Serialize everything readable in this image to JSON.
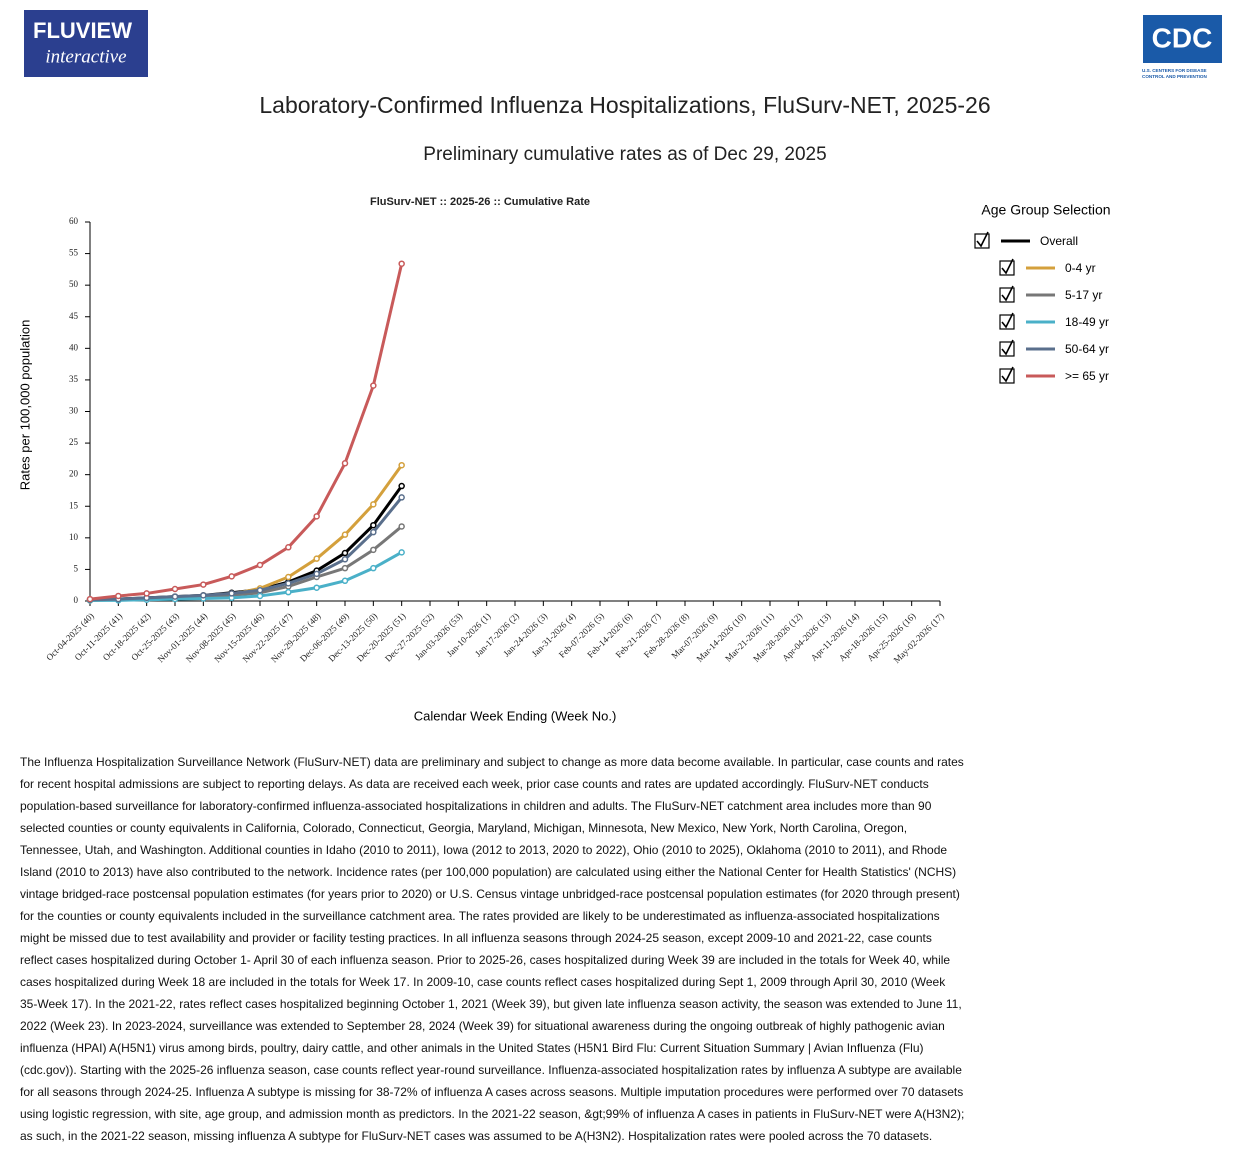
{
  "header": {
    "logo_bold": "FLU",
    "logo_light": "VIEW",
    "logo_sub": "interactive",
    "cdc": "CDC",
    "cdc_sub_1": "U.S. CENTERS FOR DISEASE",
    "cdc_sub_2": "CONTROL AND PREVENTION",
    "title": "Laboratory-Confirmed Influenza Hospitalizations, FluSurv-NET, 2025-26",
    "subtitle": "Preliminary cumulative rates as of Dec 29, 2025"
  },
  "legend_title": "Age Group Selection",
  "chart_data": {
    "type": "line",
    "title": "FluSurv-NET :: 2025-26 :: Cumulative Rate",
    "x_label": "Calendar Week Ending (Week No.)",
    "y_label": "Rates per 100,000 population",
    "categories": [
      "Oct-04-2025 (40)",
      "Oct-11-2025 (41)",
      "Oct-18-2025 (42)",
      "Oct-25-2025 (43)",
      "Nov-01-2025 (44)",
      "Nov-08-2025 (45)",
      "Nov-15-2025 (46)",
      "Nov-22-2025 (47)",
      "Nov-29-2025 (48)",
      "Dec-06-2025 (49)",
      "Dec-13-2025 (50)",
      "Dec-20-2025 (51)",
      "Dec-27-2025 (52)",
      "Jan-03-2026 (53)",
      "Jan-10-2026 (1)",
      "Jan-17-2026 (2)",
      "Jan-24-2026 (3)",
      "Jan-31-2026 (4)",
      "Feb-07-2026 (5)",
      "Feb-14-2026 (6)",
      "Feb-21-2026 (7)",
      "Feb-28-2026 (8)",
      "Mar-07-2026 (9)",
      "Mar-14-2026 (10)",
      "Mar-21-2026 (11)",
      "Mar-28-2026 (12)",
      "Apr-04-2026 (13)",
      "Apr-11-2026 (14)",
      "Apr-18-2026 (15)",
      "Apr-25-2026 (16)",
      "May-02-2026 (17)"
    ],
    "ylim": [
      0,
      60
    ],
    "yticks": [
      0,
      5,
      10,
      15,
      20,
      25,
      30,
      35,
      40,
      45,
      50,
      55,
      60
    ],
    "series": [
      {
        "name": "Overall",
        "color": "#000000",
        "values": [
          0.2,
          0.3,
          0.5,
          0.7,
          0.9,
          1.3,
          1.8,
          3.0,
          4.8,
          7.6,
          12.0,
          18.2,
          null,
          null,
          null,
          null,
          null,
          null,
          null,
          null,
          null,
          null,
          null,
          null,
          null,
          null,
          null,
          null,
          null,
          null,
          null
        ]
      },
      {
        "name": "0-4 yr",
        "color": "#d4a03c",
        "values": [
          0.1,
          0.2,
          0.4,
          0.6,
          0.8,
          1.1,
          2.0,
          3.8,
          6.7,
          10.5,
          15.3,
          21.5,
          null,
          null,
          null,
          null,
          null,
          null,
          null,
          null,
          null,
          null,
          null,
          null,
          null,
          null,
          null,
          null,
          null,
          null,
          null
        ]
      },
      {
        "name": "5-17 yr",
        "color": "#777777",
        "values": [
          0.1,
          0.2,
          0.3,
          0.5,
          0.7,
          0.9,
          1.3,
          2.3,
          3.8,
          5.2,
          8.1,
          11.8,
          null,
          null,
          null,
          null,
          null,
          null,
          null,
          null,
          null,
          null,
          null,
          null,
          null,
          null,
          null,
          null,
          null,
          null,
          null
        ]
      },
      {
        "name": "18-49 yr",
        "color": "#4ab0c8",
        "values": [
          0.1,
          0.1,
          0.2,
          0.3,
          0.4,
          0.5,
          0.8,
          1.4,
          2.1,
          3.2,
          5.2,
          7.7,
          null,
          null,
          null,
          null,
          null,
          null,
          null,
          null,
          null,
          null,
          null,
          null,
          null,
          null,
          null,
          null,
          null,
          null,
          null
        ]
      },
      {
        "name": "50-64 yr",
        "color": "#5a6f8c",
        "values": [
          0.2,
          0.3,
          0.5,
          0.7,
          0.9,
          1.2,
          1.7,
          2.8,
          4.3,
          6.6,
          10.9,
          16.4,
          null,
          null,
          null,
          null,
          null,
          null,
          null,
          null,
          null,
          null,
          null,
          null,
          null,
          null,
          null,
          null,
          null,
          null,
          null
        ]
      },
      {
        "name": ">= 65 yr",
        "color": "#c85a5a",
        "values": [
          0.3,
          0.8,
          1.2,
          1.9,
          2.6,
          3.9,
          5.7,
          8.5,
          13.4,
          21.8,
          34.1,
          53.4,
          null,
          null,
          null,
          null,
          null,
          null,
          null,
          null,
          null,
          null,
          null,
          null,
          null,
          null,
          null,
          null,
          null,
          null,
          null
        ]
      }
    ]
  },
  "note": "The Influenza Hospitalization Surveillance Network (FluSurv-NET) data are preliminary and subject to change as more data become available. In particular, case counts and rates for recent hospital admissions are subject to reporting delays. As data are received each week, prior case counts and rates are updated accordingly. FluSurv-NET conducts population-based surveillance for laboratory-confirmed influenza-associated hospitalizations in children and adults. The FluSurv-NET catchment area includes more than 90 selected counties or county equivalents in California, Colorado, Connecticut, Georgia, Maryland, Michigan, Minnesota, New Mexico, New York, North Carolina, Oregon, Tennessee, Utah, and Washington. Additional counties in Idaho (2010 to 2011), Iowa (2012 to 2013, 2020 to 2022), Ohio (2010 to 2025), Oklahoma (2010 to 2011), and Rhode Island (2010 to 2013) have also contributed to the network. Incidence rates (per 100,000 population) are calculated using either the National Center for Health Statistics' (NCHS) vintage bridged-race postcensal population estimates (for years prior to 2020) or U.S. Census vintage unbridged-race postcensal population estimates (for 2020 through present) for the counties or county equivalents included in the surveillance catchment area. The rates provided are likely to be underestimated as influenza-associated hospitalizations might be missed due to test availability and provider or facility testing practices. In all influenza seasons through 2024-25 season, except 2009-10 and 2021-22, case counts reflect cases hospitalized during October 1- April 30 of each influenza season. Prior to 2025-26, cases hospitalized during Week 39 are included in the totals for Week 40, while cases hospitalized during Week 18 are included in the totals for Week 17. In 2009-10, case counts reflect cases hospitalized during Sept 1, 2009 through April 30, 2010 (Week 35-Week 17). In the 2021-22, rates reflect cases hospitalized beginning October 1, 2021 (Week 39), but given late influenza season activity, the season was extended to June 11, 2022 (Week 23). In 2023-2024, surveillance was extended to September 28, 2024 (Week 39) for situational awareness during the ongoing outbreak of highly pathogenic avian influenza (HPAI) A(H5N1) virus among birds, poultry, dairy cattle, and other animals in the United States (H5N1 Bird Flu: Current Situation Summary | Avian Influenza (Flu) (cdc.gov)). Starting with the 2025-26 influenza season, case counts reflect year-round surveillance. Influenza-associated hospitalization rates by influenza A subtype are available for all seasons through 2024-25. Influenza A subtype is missing for 38-72% of influenza A cases across seasons. Multiple imputation procedures were performed over 70 datasets using logistic regression, with site, age group, and admission month as predictors. In the 2021-22 season, &gt;99% of influenza A cases in patients in FluSurv-NET were A(H3N2); as such, in the 2021-22 season, missing influenza A subtype for FluSurv-NET cases was assumed to be A(H3N2). Hospitalization rates were pooled across the 70 datasets."
}
